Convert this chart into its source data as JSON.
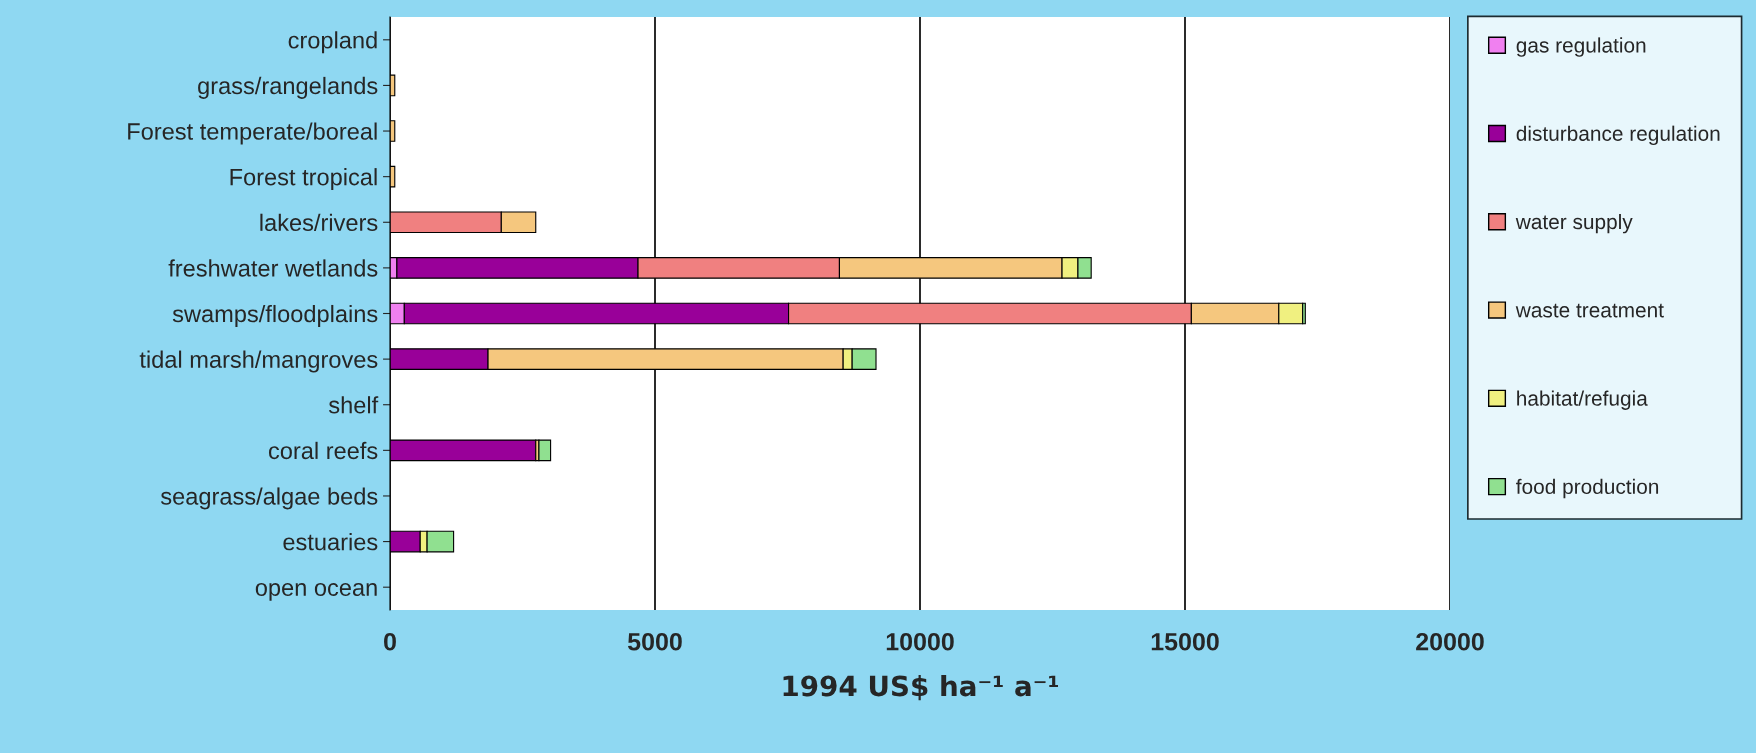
{
  "chart_data": {
    "type": "bar",
    "orientation": "horizontal",
    "stacked": true,
    "categories": [
      "cropland",
      "grass/rangelands",
      "Forest temperate/boreal",
      "Forest tropical",
      "lakes/rivers",
      "freshwater wetlands",
      "swamps/floodplains",
      "tidal marsh/mangroves",
      "shelf",
      "coral reefs",
      "seagrass/algae beds",
      "estuaries",
      "open ocean"
    ],
    "series": [
      {
        "name": "gas regulation",
        "color": "#f080f0",
        "values": [
          null,
          null,
          null,
          null,
          null,
          130,
          270,
          null,
          null,
          null,
          null,
          null,
          null
        ]
      },
      {
        "name": "disturbance regulation",
        "color": "#990099",
        "values": [
          null,
          null,
          null,
          null,
          null,
          4550,
          7250,
          1850,
          null,
          2750,
          null,
          570,
          null
        ]
      },
      {
        "name": "water supply",
        "color": "#f08080",
        "values": [
          null,
          null,
          null,
          null,
          2100,
          3800,
          7600,
          null,
          null,
          null,
          null,
          null,
          null
        ]
      },
      {
        "name": "waste treatment",
        "color": "#f5c77e",
        "values": [
          null,
          90,
          90,
          90,
          650,
          4200,
          1650,
          6700,
          null,
          60,
          null,
          null,
          null
        ]
      },
      {
        "name": "habitat/refugia",
        "color": "#f0f080",
        "values": [
          null,
          null,
          null,
          null,
          null,
          300,
          450,
          170,
          null,
          null,
          null,
          130,
          null
        ]
      },
      {
        "name": "food production",
        "color": "#90e090",
        "values": [
          null,
          null,
          null,
          null,
          null,
          250,
          50,
          450,
          null,
          220,
          null,
          500,
          null
        ]
      }
    ],
    "xlabel": "1994 US$ ha⁻¹ a⁻¹",
    "xlim": [
      0,
      20000
    ],
    "xticks": [
      0,
      5000,
      10000,
      15000,
      20000
    ],
    "grid": "x",
    "legend": "right"
  }
}
